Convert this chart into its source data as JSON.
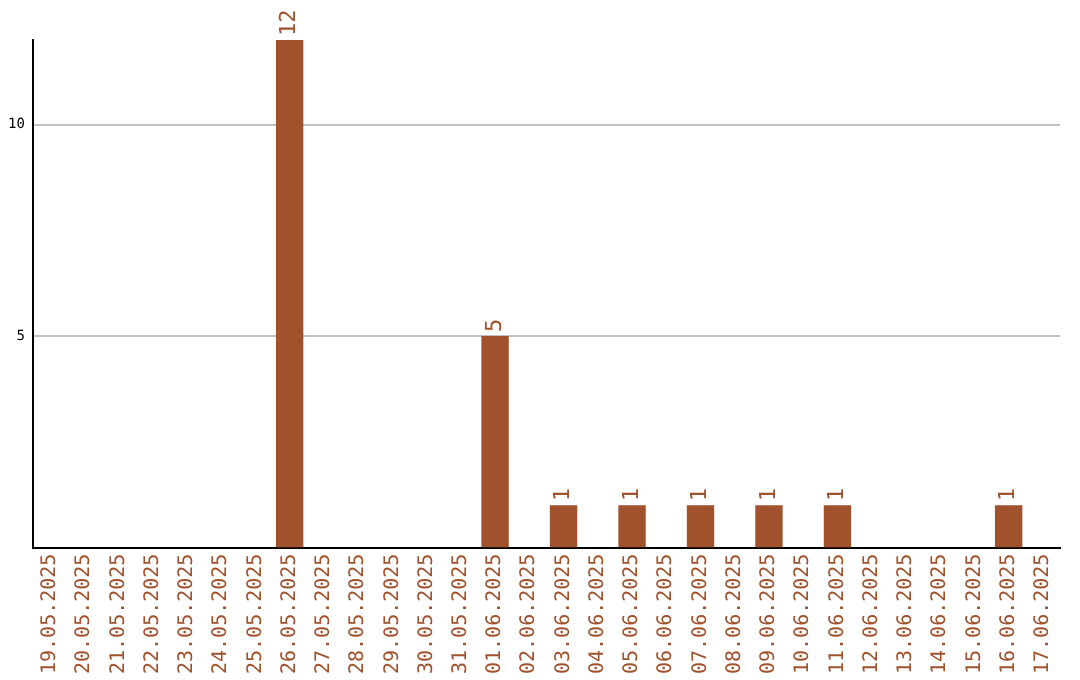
{
  "chart_data": {
    "type": "bar",
    "categories": [
      "19.05.2025",
      "20.05.2025",
      "21.05.2025",
      "22.05.2025",
      "23.05.2025",
      "24.05.2025",
      "25.05.2025",
      "26.05.2025",
      "27.05.2025",
      "28.05.2025",
      "29.05.2025",
      "30.05.2025",
      "31.05.2025",
      "01.06.2025",
      "02.06.2025",
      "03.06.2025",
      "04.06.2025",
      "05.06.2025",
      "06.06.2025",
      "07.06.2025",
      "08.06.2025",
      "09.06.2025",
      "10.06.2025",
      "11.06.2025",
      "12.06.2025",
      "13.06.2025",
      "14.06.2025",
      "15.06.2025",
      "16.06.2025",
      "17.06.2025"
    ],
    "values": [
      0,
      0,
      0,
      0,
      0,
      0,
      0,
      12,
      0,
      0,
      0,
      0,
      0,
      5,
      0,
      1,
      0,
      1,
      0,
      1,
      0,
      1,
      0,
      1,
      0,
      0,
      0,
      0,
      1,
      0
    ],
    "value_labels": [
      null,
      null,
      null,
      null,
      null,
      null,
      null,
      "12",
      null,
      null,
      null,
      null,
      null,
      "5",
      null,
      "1",
      null,
      "1",
      null,
      "1",
      null,
      "1",
      null,
      "1",
      null,
      null,
      null,
      null,
      "1",
      null
    ],
    "color": "#a0522d",
    "ylim": [
      0,
      12
    ],
    "yticks": [
      5,
      10
    ],
    "grid": "y",
    "legend": false
  }
}
